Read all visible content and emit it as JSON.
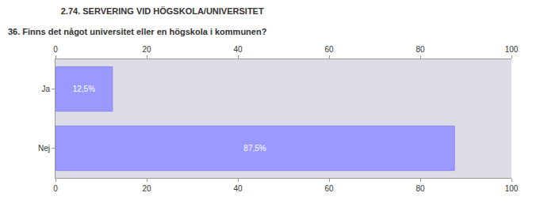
{
  "chart_data": {
    "type": "bar",
    "title": "2.74. SERVERING VID HÖGSKOLA/UNIVERSITET",
    "subtitle": "36. Finns det något universitet eller en högskola i kommunen?",
    "orientation": "horizontal",
    "categories": [
      "Ja",
      "Nej"
    ],
    "values": [
      12.5,
      87.5
    ],
    "value_labels": [
      "12,5%",
      "87,5%"
    ],
    "data_labels": true,
    "color": "#9999ff",
    "xlim": [
      0,
      100
    ],
    "xticks": [
      0,
      20,
      40,
      60,
      80,
      100
    ],
    "grid": false
  }
}
